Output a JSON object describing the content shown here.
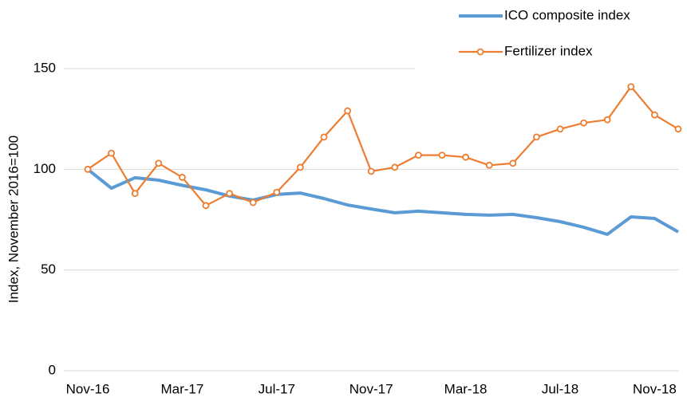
{
  "chart_data": {
    "type": "line",
    "y_label": "Index, November 2016=100",
    "categories": [
      "Nov-16",
      null,
      null,
      null,
      "Mar-17",
      null,
      null,
      null,
      "Jul-17",
      null,
      null,
      null,
      "Nov-17",
      null,
      null,
      null,
      "Mar-18",
      null,
      null,
      null,
      "Jul-18",
      null,
      null,
      null,
      "Nov-18",
      null
    ],
    "series": [
      {
        "name": "ICO composite index",
        "color": "#5b9bd5",
        "markers": false,
        "values": [
          100,
          90.6,
          95.8,
          94.6,
          92,
          89.8,
          86.7,
          84.7,
          87.5,
          88.2,
          85.5,
          82.3,
          80.3,
          78.4,
          79.2,
          78.4,
          77.6,
          77.2,
          77.6,
          76,
          74,
          71.2,
          67.7,
          76.4,
          75.6,
          68.9
        ]
      },
      {
        "name": "Fertilizer index",
        "color": "#ed7d31",
        "markers": true,
        "values": [
          100,
          108,
          88,
          103,
          96,
          82,
          88,
          83.5,
          88.6,
          101,
          116,
          129,
          99,
          101,
          107,
          107,
          106,
          102,
          103,
          116,
          120,
          123,
          124.6,
          141,
          127,
          120
        ]
      }
    ],
    "ylim": [
      0,
      150
    ],
    "yticks": [
      0,
      50,
      100,
      150
    ],
    "grid": true,
    "legend": "top-right"
  }
}
